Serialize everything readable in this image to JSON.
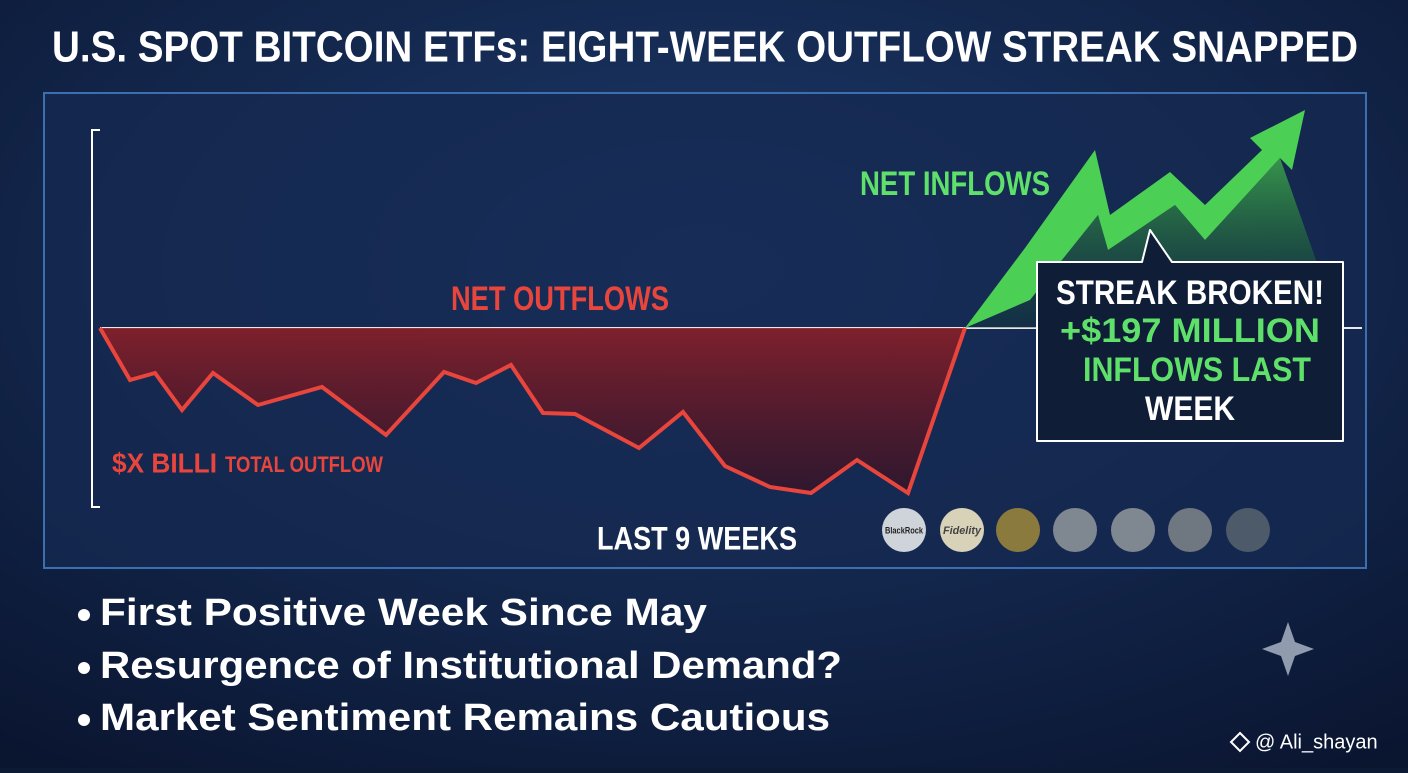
{
  "header": {
    "title": "U.S. SPOT BITCOIN ETFs: EIGHT-WEEK OUTFLOW STREAK SNAPPED"
  },
  "chart": {
    "inflow_label": "NET INFLOWS",
    "outflow_label": "NET OUTFLOWS",
    "total_amount": "$X BILLI",
    "total_label": "TOTAL OUTFLOW",
    "period_label": "LAST 9 WEEKS",
    "callout": [
      "STREAK BROKEN!",
      "+$197 MILLION",
      "INFLOWS LAST",
      "WEEK"
    ],
    "issuers": [
      "BlackRock",
      "Fidelity"
    ]
  },
  "bullets": [
    "First Positive Week Since May",
    "Resurgence of Institutional Demand?",
    "Market Sentiment Remains Cautious"
  ],
  "watermark": "@ Ali_shayan"
}
